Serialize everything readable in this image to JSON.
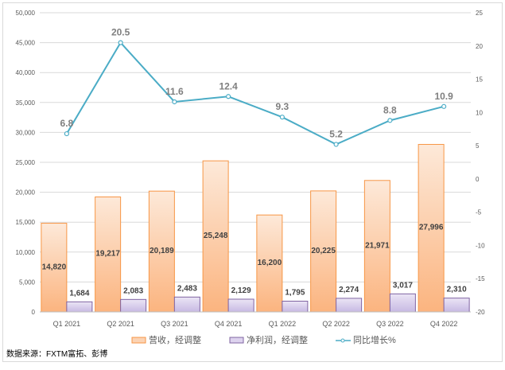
{
  "chart_data": {
    "type": "bar+line",
    "categories": [
      "Q1 2021",
      "Q2 2021",
      "Q3 2021",
      "Q4 2021",
      "Q1 2022",
      "Q2 2022",
      "Q3 2022",
      "Q4 2022"
    ],
    "series": [
      {
        "name": "营收，经调整",
        "type": "bar",
        "axis": "left",
        "color": "#f8a56a",
        "values": [
          14820,
          19217,
          20189,
          25248,
          16200,
          20225,
          21971,
          27996
        ],
        "labels": [
          "14,820",
          "19,217",
          "20,189",
          "25,248",
          "16,200",
          "20,225",
          "21,971",
          "27,996"
        ]
      },
      {
        "name": "净利润，经调整",
        "type": "bar",
        "axis": "left",
        "color": "#8e7cc3",
        "values": [
          1684,
          2083,
          2483,
          2129,
          1795,
          2274,
          3017,
          2310
        ],
        "labels": [
          "1,684",
          "2,083",
          "2,483",
          "2,129",
          "1,795",
          "2,274",
          "3,017",
          "2,310"
        ]
      },
      {
        "name": "同比增长%",
        "type": "line",
        "axis": "right",
        "color": "#4bacc6",
        "values": [
          6.8,
          20.5,
          11.6,
          12.4,
          9.3,
          5.2,
          8.8,
          10.9
        ],
        "labels": [
          "6.8",
          "20.5",
          "11.6",
          "12.4",
          "9.3",
          "5.2",
          "8.8",
          "10.9"
        ]
      }
    ],
    "y_left": {
      "range": [
        0,
        50000
      ],
      "ticks": [
        "0",
        "5,000",
        "10,000",
        "15,000",
        "20,000",
        "25,000",
        "30,000",
        "35,000",
        "40,000",
        "45,000",
        "50,000"
      ]
    },
    "y_right": {
      "range": [
        -20,
        25
      ],
      "ticks": [
        "-20",
        "-15",
        "-10",
        "-5",
        "0",
        "5",
        "10",
        "15",
        "20",
        "25"
      ]
    },
    "grid": true,
    "legend": "bottom"
  },
  "source": "数据来源：FXTM富拓、彭博"
}
